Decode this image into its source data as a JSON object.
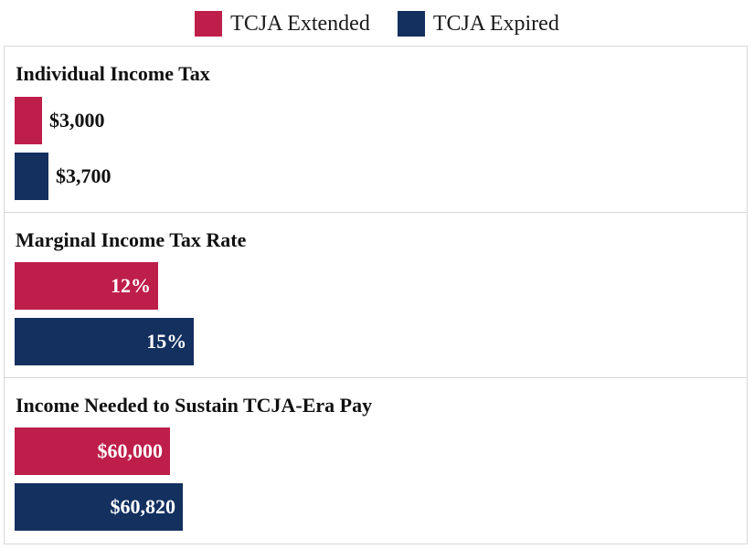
{
  "legend": [
    {
      "label": "TCJA Extended",
      "color": "#BE1E4A"
    },
    {
      "label": "TCJA Expired",
      "color": "#13305F"
    }
  ],
  "chart_data": [
    {
      "type": "bar",
      "orientation": "horizontal",
      "title": "Individual Income Tax",
      "categories": [
        "TCJA Extended",
        "TCJA Expired"
      ],
      "values": [
        3000,
        3700
      ],
      "labels": [
        "$3,000",
        "$3,700"
      ],
      "label_position": "outside"
    },
    {
      "type": "bar",
      "orientation": "horizontal",
      "title": "Marginal Income Tax Rate",
      "categories": [
        "TCJA Extended",
        "TCJA Expired"
      ],
      "values": [
        12,
        15
      ],
      "labels": [
        "12%",
        "15%"
      ],
      "label_position": "inside"
    },
    {
      "type": "bar",
      "orientation": "horizontal",
      "title": "Income Needed to Sustain TCJA-Era Pay",
      "categories": [
        "TCJA Extended",
        "TCJA Expired"
      ],
      "values": [
        60000,
        60820
      ],
      "labels": [
        "$60,000",
        "$60,820"
      ],
      "label_position": "inside"
    }
  ]
}
